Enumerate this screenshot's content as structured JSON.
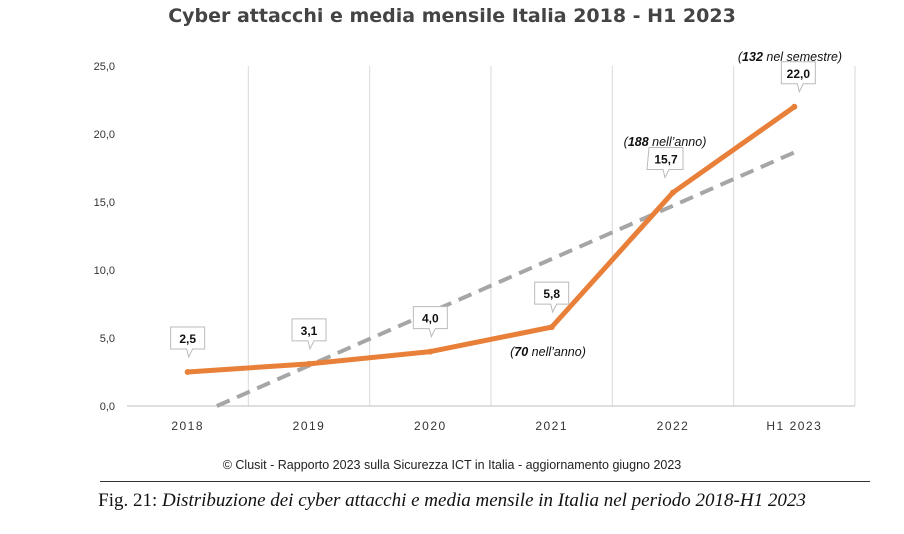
{
  "chart_data": {
    "type": "line",
    "title": "Cyber attacchi e media mensile Italia 2018 - H1 2023",
    "categories": [
      "2018",
      "2019",
      "2020",
      "2021",
      "2022",
      "H1 2023"
    ],
    "series": [
      {
        "values": [
          2.5,
          3.1,
          4.0,
          5.8,
          15.7,
          22.0
        ],
        "color": "#E8803A"
      }
    ],
    "data_labels": [
      "2,5",
      "3,1",
      "4,0",
      "5,8",
      "15,7",
      "22,0"
    ],
    "trendline": {
      "type": "linear",
      "style": "dashed",
      "color": "#A6A6A6"
    },
    "ylim": [
      0,
      25
    ],
    "yticks": [
      "0,0",
      "5,0",
      "10,0",
      "15,0",
      "20,0",
      "25,0"
    ],
    "grid": "vertical",
    "annotations": [
      {
        "category": "2021",
        "bold": "70",
        "text": " nell’anno)"
      },
      {
        "category": "2022",
        "bold": "188",
        "text": " nell’anno)"
      },
      {
        "category": "H1 2023",
        "bold": "132",
        "text": " nel semestre)"
      }
    ]
  },
  "source": "© Clusit - Rapporto 2023 sulla Sicurezza ICT in Italia - aggiornamento giugno 2023",
  "caption": {
    "label": "Fig. 21:",
    "text": "Distribuzione dei cyber attacchi e media mensile in Italia nel periodo 2018-H1 2023"
  }
}
